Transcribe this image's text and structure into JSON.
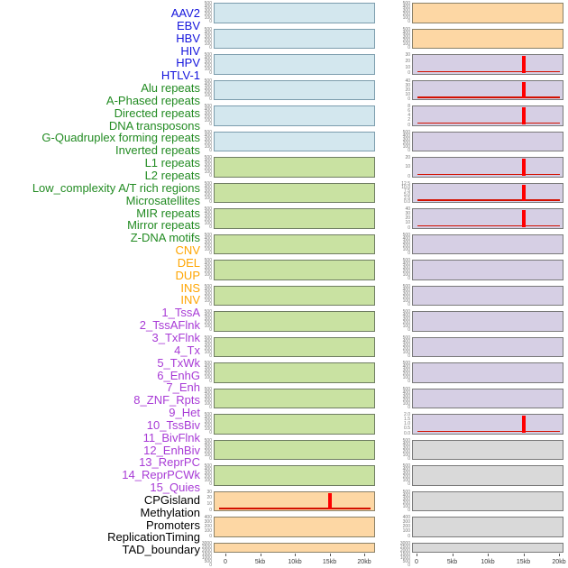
{
  "x_axis": {
    "tick_labels": [
      "0",
      "5kb",
      "10kb",
      "15kb",
      "20kb"
    ]
  },
  "palette": {
    "virus": {
      "fill": "#D3E7EE",
      "border": "#7C9DAD",
      "label": "#1414DC"
    },
    "repeat": {
      "fill": "#C9E2A2",
      "border": "#6F7D62",
      "label": "#228B22"
    },
    "sv": {
      "fill": "#FDD7A4",
      "border": "#8A8168",
      "label": "#FFA500"
    },
    "state": {
      "fill": "#D6CFE4",
      "border": "#7A7A7A",
      "label": "#A83BD6"
    },
    "other": {
      "fill": "#D9D9D9",
      "border": "#7A7A7A",
      "label": "#000000"
    }
  },
  "accent": {
    "spike": "#FF0000",
    "spike_baseline": "#D31000"
  },
  "chart_data": {
    "type": "area",
    "layout": "44 genomic feature tracks drawn as 22 rows x 2 columns of mini area panels; labels listed top-to-bottom fill the left column (rows 0-21) then the right column (rows 0-21)",
    "x_range_kb": [
      0,
      20
    ],
    "x_tick_labels": [
      "0",
      "5kb",
      "10kb",
      "15kb",
      "20kb"
    ],
    "value_profile": "each track is a flat filled area across 0-20kb; tracks with spike_at_kb also show a narrow red peak at ~15kb plus a thin dark-red baseline",
    "tracks": [
      {
        "label": "AAV2",
        "category": "virus",
        "column": "left",
        "row": 0,
        "y_ticks": [
          500,
          400,
          300,
          200,
          100,
          0
        ],
        "spike_at_kb": null
      },
      {
        "label": "EBV",
        "category": "virus",
        "column": "left",
        "row": 1,
        "y_ticks": [
          500,
          400,
          300,
          200,
          100,
          0
        ],
        "spike_at_kb": null
      },
      {
        "label": "HBV",
        "category": "virus",
        "column": "left",
        "row": 2,
        "y_ticks": [
          500,
          400,
          300,
          200,
          100,
          0
        ],
        "spike_at_kb": null
      },
      {
        "label": "HIV",
        "category": "virus",
        "column": "left",
        "row": 3,
        "y_ticks": [
          500,
          400,
          300,
          200,
          100,
          0
        ],
        "spike_at_kb": null
      },
      {
        "label": "HPV",
        "category": "virus",
        "column": "left",
        "row": 4,
        "y_ticks": [
          500,
          400,
          300,
          200,
          100,
          0
        ],
        "spike_at_kb": null
      },
      {
        "label": "HTLV-1",
        "category": "virus",
        "column": "left",
        "row": 5,
        "y_ticks": [
          500,
          400,
          300,
          200,
          100,
          0
        ],
        "spike_at_kb": null
      },
      {
        "label": "Alu repeats",
        "category": "repeat",
        "column": "left",
        "row": 6,
        "y_ticks": [
          500,
          400,
          300,
          200,
          100,
          0
        ],
        "spike_at_kb": null
      },
      {
        "label": "A-Phased repeats",
        "category": "repeat",
        "column": "left",
        "row": 7,
        "y_ticks": [
          500,
          400,
          300,
          200,
          100,
          0
        ],
        "spike_at_kb": null
      },
      {
        "label": "Directed repeats",
        "category": "repeat",
        "column": "left",
        "row": 8,
        "y_ticks": [
          500,
          400,
          300,
          200,
          100,
          0
        ],
        "spike_at_kb": null
      },
      {
        "label": "DNA transposons",
        "category": "repeat",
        "column": "left",
        "row": 9,
        "y_ticks": [
          500,
          400,
          300,
          200,
          100,
          0
        ],
        "spike_at_kb": null
      },
      {
        "label": "G-Quadruplex forming repeats",
        "category": "repeat",
        "column": "left",
        "row": 10,
        "y_ticks": [
          500,
          400,
          300,
          200,
          100,
          0
        ],
        "spike_at_kb": null
      },
      {
        "label": "Inverted repeats",
        "category": "repeat",
        "column": "left",
        "row": 11,
        "y_ticks": [
          500,
          400,
          300,
          200,
          100,
          0
        ],
        "spike_at_kb": null
      },
      {
        "label": "L1 repeats",
        "category": "repeat",
        "column": "left",
        "row": 12,
        "y_ticks": [
          500,
          400,
          300,
          200,
          100,
          0
        ],
        "spike_at_kb": null
      },
      {
        "label": "L2 repeats",
        "category": "repeat",
        "column": "left",
        "row": 13,
        "y_ticks": [
          500,
          400,
          300,
          200,
          100,
          0
        ],
        "spike_at_kb": null
      },
      {
        "label": "Low_complexity A/T rich regions",
        "category": "repeat",
        "column": "left",
        "row": 14,
        "y_ticks": [
          500,
          400,
          300,
          200,
          100,
          0
        ],
        "spike_at_kb": null
      },
      {
        "label": "Microsatellites",
        "category": "repeat",
        "column": "left",
        "row": 15,
        "y_ticks": [
          500,
          400,
          300,
          200,
          100,
          0
        ],
        "spike_at_kb": null
      },
      {
        "label": "MIR repeats",
        "category": "repeat",
        "column": "left",
        "row": 16,
        "y_ticks": [
          500,
          400,
          300,
          200,
          100,
          0
        ],
        "spike_at_kb": null
      },
      {
        "label": "Mirror repeats",
        "category": "repeat",
        "column": "left",
        "row": 17,
        "y_ticks": [
          500,
          400,
          300,
          200,
          100,
          0
        ],
        "spike_at_kb": null
      },
      {
        "label": "Z-DNA motifs",
        "category": "repeat",
        "column": "left",
        "row": 18,
        "y_ticks": [
          500,
          400,
          300,
          200,
          100,
          0
        ],
        "spike_at_kb": null
      },
      {
        "label": "CNV",
        "category": "sv",
        "column": "left",
        "row": 19,
        "y_ticks": [
          30,
          20,
          10,
          0
        ],
        "spike_at_kb": 15
      },
      {
        "label": "DEL",
        "category": "sv",
        "column": "left",
        "row": 20,
        "y_ticks": [
          400,
          300,
          200,
          100,
          0
        ],
        "spike_at_kb": null
      },
      {
        "label": "DUP",
        "category": "sv",
        "column": "left",
        "row": 21,
        "y_ticks": [
          3000,
          2500,
          2000,
          1500,
          1000,
          500,
          0
        ],
        "spike_at_kb": null
      },
      {
        "label": "INS",
        "category": "sv",
        "column": "right",
        "row": 0,
        "y_ticks": [
          500,
          400,
          300,
          200,
          100,
          0
        ],
        "spike_at_kb": null
      },
      {
        "label": "INV",
        "category": "sv",
        "column": "right",
        "row": 1,
        "y_ticks": [
          500,
          400,
          300,
          200,
          100,
          0
        ],
        "spike_at_kb": null
      },
      {
        "label": "1_TssA",
        "category": "state",
        "column": "right",
        "row": 2,
        "y_ticks": [
          30,
          20,
          10,
          0
        ],
        "spike_at_kb": 15
      },
      {
        "label": "2_TssAFlnk",
        "category": "state",
        "column": "right",
        "row": 3,
        "y_ticks": [
          40,
          30,
          20,
          10,
          0
        ],
        "spike_at_kb": 15
      },
      {
        "label": "3_TxFlnk",
        "category": "state",
        "column": "right",
        "row": 4,
        "y_ticks": [
          8,
          6,
          4,
          2,
          0
        ],
        "spike_at_kb": 15
      },
      {
        "label": "4_Tx",
        "category": "state",
        "column": "right",
        "row": 5,
        "y_ticks": [
          500,
          400,
          300,
          200,
          100,
          0
        ],
        "spike_at_kb": null
      },
      {
        "label": "5_TxWk",
        "category": "state",
        "column": "right",
        "row": 6,
        "y_ticks": [
          20,
          10,
          0
        ],
        "spike_at_kb": 15
      },
      {
        "label": "6_EnhG",
        "category": "state",
        "column": "right",
        "row": 7,
        "y_ticks": [
          "12.5",
          "10.0",
          "7.5",
          "5.0",
          "2.5",
          "0.0"
        ],
        "spike_at_kb": 15
      },
      {
        "label": "7_Enh",
        "category": "state",
        "column": "right",
        "row": 8,
        "y_ticks": [
          40,
          30,
          20,
          10,
          0
        ],
        "spike_at_kb": 15
      },
      {
        "label": "8_ZNF_Rpts",
        "category": "state",
        "column": "right",
        "row": 9,
        "y_ticks": [
          500,
          400,
          300,
          200,
          100,
          0
        ],
        "spike_at_kb": null
      },
      {
        "label": "9_Het",
        "category": "state",
        "column": "right",
        "row": 10,
        "y_ticks": [
          500,
          400,
          300,
          200,
          100,
          0
        ],
        "spike_at_kb": null
      },
      {
        "label": "10_TssBiv",
        "category": "state",
        "column": "right",
        "row": 11,
        "y_ticks": [
          500,
          400,
          300,
          200,
          100,
          0
        ],
        "spike_at_kb": null
      },
      {
        "label": "11_BivFlnk",
        "category": "state",
        "column": "right",
        "row": 12,
        "y_ticks": [
          500,
          400,
          300,
          200,
          100,
          0
        ],
        "spike_at_kb": null
      },
      {
        "label": "12_EnhBiv",
        "category": "state",
        "column": "right",
        "row": 13,
        "y_ticks": [
          500,
          400,
          300,
          200,
          100,
          0
        ],
        "spike_at_kb": null
      },
      {
        "label": "13_ReprPC",
        "category": "state",
        "column": "right",
        "row": 14,
        "y_ticks": [
          500,
          400,
          300,
          200,
          100,
          0
        ],
        "spike_at_kb": null
      },
      {
        "label": "14_ReprPCWk",
        "category": "state",
        "column": "right",
        "row": 15,
        "y_ticks": [
          500,
          400,
          300,
          200,
          100,
          0
        ],
        "spike_at_kb": null
      },
      {
        "label": "15_Quies",
        "category": "state",
        "column": "right",
        "row": 16,
        "y_ticks": [
          "2.0",
          "1.5",
          "1.0",
          "0.5",
          "0.0"
        ],
        "spike_at_kb": 15
      },
      {
        "label": "CPGisland",
        "category": "other",
        "column": "right",
        "row": 17,
        "y_ticks": [
          500,
          400,
          300,
          200,
          100,
          0
        ],
        "spike_at_kb": null
      },
      {
        "label": "Methylation",
        "category": "other",
        "column": "right",
        "row": 18,
        "y_ticks": [
          500,
          400,
          300,
          200,
          100,
          0
        ],
        "spike_at_kb": null
      },
      {
        "label": "Promoters",
        "category": "other",
        "column": "right",
        "row": 19,
        "y_ticks": [
          500,
          400,
          300,
          200,
          100,
          0
        ],
        "spike_at_kb": null
      },
      {
        "label": "ReplicationTiming",
        "category": "other",
        "column": "right",
        "row": 20,
        "y_ticks": [
          400,
          300,
          200,
          100,
          0
        ],
        "spike_at_kb": null
      },
      {
        "label": "TAD_boundary",
        "category": "other",
        "column": "right",
        "row": 21,
        "y_ticks": [
          3000,
          2500,
          2000,
          1500,
          1000,
          500,
          0
        ],
        "spike_at_kb": null
      }
    ]
  }
}
